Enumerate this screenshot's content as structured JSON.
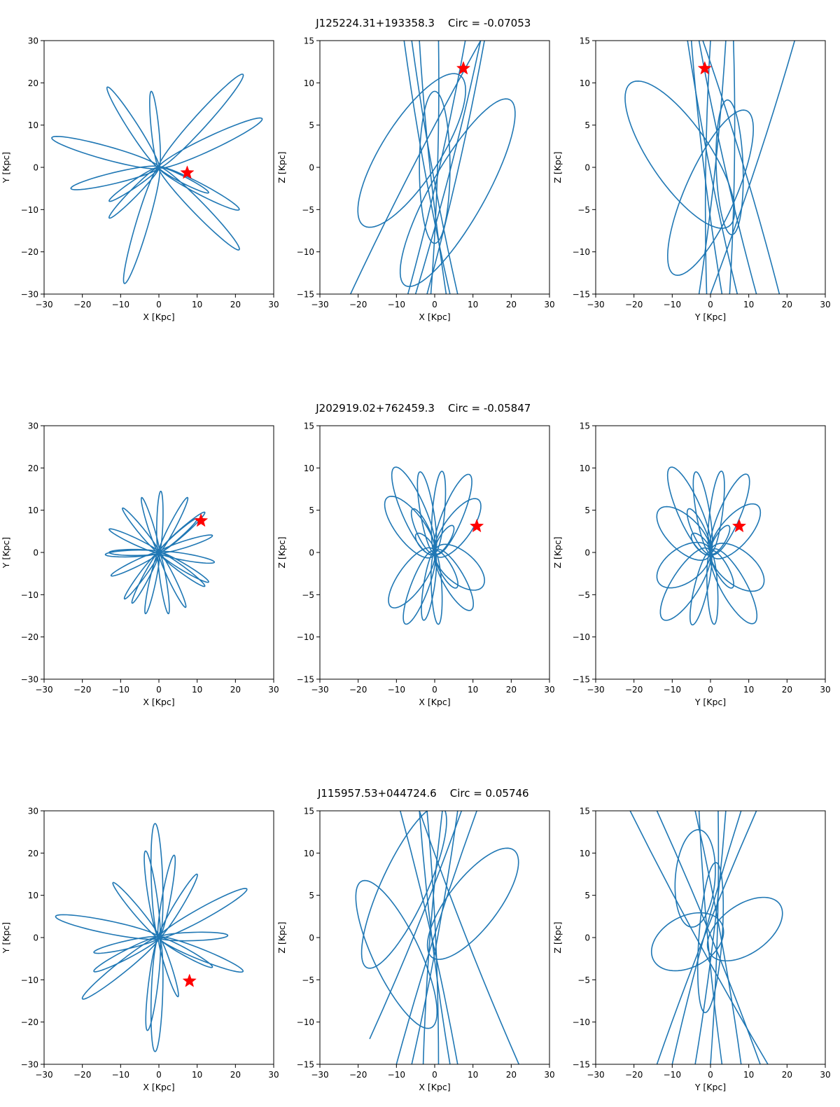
{
  "figure": {
    "rows": [
      {
        "star_id": "J125224.31+193358.3",
        "circ": "Circ = -0.07053"
      },
      {
        "star_id": "J202919.02+762459.3",
        "circ": "Circ = -0.05847"
      },
      {
        "star_id": "J115957.53+044724.6",
        "circ": "Circ = 0.05746"
      }
    ]
  },
  "colors": {
    "orbit": "#1f77b4",
    "star_marker": "#ff0000",
    "axes": "#000000"
  },
  "chart_data": [
    {
      "row": 0,
      "panel": "XY",
      "type": "line",
      "title": "J125224.31+193358.3    Circ = -0.07053",
      "xlabel": "X [Kpc]",
      "ylabel": "Y [Kpc]",
      "xlim": [
        -30,
        30
      ],
      "ylim": [
        -30,
        30
      ],
      "xticks": [
        -30,
        -20,
        -10,
        0,
        10,
        20,
        30
      ],
      "yticks": [
        -30,
        -20,
        -10,
        0,
        10,
        20,
        30
      ],
      "orbit": {
        "type": "rosette",
        "petals": [
          [
            22,
            22
          ],
          [
            27,
            11.5
          ],
          [
            21,
            -10
          ],
          [
            21,
            -19.5
          ],
          [
            -9,
            -27.5
          ],
          [
            -13,
            -8
          ],
          [
            -23,
            -5
          ],
          [
            -28,
            7
          ],
          [
            -13.5,
            19
          ],
          [
            -2,
            18
          ],
          [
            -13,
            -12
          ],
          [
            13,
            -6
          ]
        ]
      },
      "star": [
        7.4,
        -1.3
      ]
    },
    {
      "row": 0,
      "panel": "XZ",
      "type": "line",
      "xlabel": "X [Kpc]",
      "ylabel": "Z [Kpc]",
      "xlim": [
        -30,
        30
      ],
      "ylim": [
        -15,
        15
      ],
      "xticks": [
        -30,
        -20,
        -10,
        0,
        10,
        20,
        30
      ],
      "yticks": [
        -15,
        -10,
        -5,
        0,
        5,
        10,
        15
      ],
      "orbit": {
        "type": "edge",
        "strands": [
          [
            -8,
            15,
            4,
            -15
          ],
          [
            12,
            15,
            -5,
            -15
          ],
          [
            -6,
            15,
            6,
            -15
          ],
          [
            1,
            15,
            -1,
            -15
          ],
          [
            -22,
            -15,
            12,
            15
          ],
          [
            13,
            15,
            -2,
            -15
          ],
          [
            -4,
            15,
            3,
            -15
          ],
          [
            8,
            15,
            -7,
            -15
          ]
        ],
        "loops": [
          [
            -6,
            2,
            16,
            5,
            30
          ],
          [
            6,
            -3,
            18,
            5,
            35
          ],
          [
            0,
            0,
            4,
            9,
            0
          ]
        ]
      },
      "star": [
        7.5,
        11.7
      ]
    },
    {
      "row": 0,
      "panel": "YZ",
      "type": "line",
      "xlabel": "Y [Kpc]",
      "ylabel": "Z [Kpc]",
      "xlim": [
        -30,
        30
      ],
      "ylim": [
        -15,
        15
      ],
      "xticks": [
        -30,
        -20,
        -10,
        0,
        10,
        20,
        30
      ],
      "yticks": [
        -15,
        -10,
        -5,
        0,
        5,
        10,
        15
      ],
      "orbit": {
        "type": "edge",
        "strands": [
          [
            -5,
            15,
            3,
            -15
          ],
          [
            4,
            15,
            -3,
            -15
          ],
          [
            -3,
            15,
            12,
            -15
          ],
          [
            22,
            15,
            0,
            -15
          ],
          [
            -6,
            15,
            7,
            -15
          ],
          [
            -2,
            15,
            18,
            -15
          ],
          [
            0,
            15,
            -1,
            -15
          ],
          [
            6,
            15,
            5,
            -15
          ]
        ],
        "loops": [
          [
            -8,
            1.5,
            16,
            5,
            -28
          ],
          [
            0,
            -3,
            14,
            5,
            40
          ],
          [
            5,
            0,
            3.5,
            8,
            5
          ]
        ]
      },
      "star": [
        -1.5,
        11.7
      ]
    },
    {
      "row": 1,
      "panel": "XY",
      "type": "line",
      "title": "J202919.02+762459.3    Circ = -0.05847",
      "xlabel": "X [Kpc]",
      "ylabel": "Y [Kpc]",
      "xlim": [
        -30,
        30
      ],
      "ylim": [
        -30,
        30
      ],
      "xticks": [
        -30,
        -20,
        -10,
        0,
        10,
        20,
        30
      ],
      "yticks": [
        -30,
        -20,
        -10,
        0,
        10,
        20,
        30
      ],
      "orbit": {
        "type": "rosette",
        "petals": [
          [
            0.5,
            14.5
          ],
          [
            7.5,
            13
          ],
          [
            12,
            9.5
          ],
          [
            14,
            4
          ],
          [
            14.5,
            -2.3
          ],
          [
            12,
            -8
          ],
          [
            7,
            -13
          ],
          [
            2.5,
            -14.5
          ],
          [
            -3.5,
            -14.5
          ],
          [
            -9,
            -11
          ],
          [
            -12.5,
            -5.5
          ],
          [
            -14,
            -0.5
          ],
          [
            -13,
            5.5
          ],
          [
            -9.5,
            10.5
          ],
          [
            -4.5,
            13
          ],
          [
            10,
            8
          ],
          [
            13,
            -7
          ],
          [
            -7,
            -12
          ],
          [
            -13,
            0
          ]
        ]
      },
      "star": [
        11,
        7.5
      ]
    },
    {
      "row": 1,
      "panel": "XZ",
      "type": "line",
      "xlabel": "X [Kpc]",
      "ylabel": "Z [Kpc]",
      "xlim": [
        -30,
        30
      ],
      "ylim": [
        -15,
        15
      ],
      "xticks": [
        -30,
        -20,
        -10,
        0,
        10,
        20,
        30
      ],
      "yticks": [
        -15,
        -10,
        -5,
        0,
        5,
        10,
        15
      ],
      "orbit": {
        "type": "butterfly",
        "petals": [
          [
            -11,
            9.8
          ],
          [
            -4,
            9.5
          ],
          [
            2,
            9.6
          ],
          [
            9.5,
            9
          ],
          [
            -13,
            6
          ],
          [
            12,
            5.8
          ],
          [
            -12,
            -6
          ],
          [
            13,
            -3.5
          ],
          [
            -8,
            -8.3
          ],
          [
            -3,
            -8
          ],
          [
            1,
            -8.5
          ],
          [
            10,
            -6.5
          ],
          [
            -6,
            5
          ],
          [
            6,
            -4
          ],
          [
            -5,
            2
          ],
          [
            5,
            3
          ]
        ]
      },
      "star": [
        11,
        3.1
      ]
    },
    {
      "row": 1,
      "panel": "YZ",
      "type": "line",
      "xlabel": "Y [Kpc]",
      "ylabel": "Z [Kpc]",
      "xlim": [
        -30,
        30
      ],
      "ylim": [
        -15,
        15
      ],
      "xticks": [
        -30,
        -20,
        -10,
        0,
        10,
        20,
        30
      ],
      "yticks": [
        -15,
        -10,
        -5,
        0,
        5,
        10,
        15
      ],
      "orbit": {
        "type": "butterfly",
        "petals": [
          [
            -11,
            9.8
          ],
          [
            -4,
            9.5
          ],
          [
            3,
            9.6
          ],
          [
            10,
            9
          ],
          [
            -14,
            4.5
          ],
          [
            13,
            5
          ],
          [
            -14,
            -3
          ],
          [
            14,
            -3.5
          ],
          [
            -13,
            -7.5
          ],
          [
            -5,
            -8.5
          ],
          [
            1,
            -8.5
          ],
          [
            12,
            -8
          ],
          [
            -6,
            5
          ],
          [
            6,
            -4
          ],
          [
            -5,
            2
          ],
          [
            5,
            3
          ]
        ]
      },
      "star": [
        7.5,
        3.1
      ]
    },
    {
      "row": 2,
      "panel": "XY",
      "type": "line",
      "title": "J115957.53+044724.6    Circ = 0.05746",
      "xlabel": "X [Kpc]",
      "ylabel": "Y [Kpc]",
      "xlim": [
        -30,
        30
      ],
      "ylim": [
        -30,
        30
      ],
      "xticks": [
        -30,
        -20,
        -10,
        0,
        10,
        20,
        30
      ],
      "yticks": [
        -30,
        -20,
        -10,
        0,
        10,
        20,
        30
      ],
      "orbit": {
        "type": "rosette",
        "petals": [
          [
            -1,
            27
          ],
          [
            4,
            19.5
          ],
          [
            10,
            15
          ],
          [
            23,
            11.5
          ],
          [
            18,
            0.5
          ],
          [
            22,
            -8
          ],
          [
            14,
            -7
          ],
          [
            -1,
            -27
          ],
          [
            -3,
            -22
          ],
          [
            -20,
            -14.5
          ],
          [
            -17,
            -3.5
          ],
          [
            -27,
            5
          ],
          [
            -12,
            13
          ],
          [
            -3.5,
            20.5
          ],
          [
            -17,
            -8
          ],
          [
            5,
            -14
          ]
        ]
      },
      "star": [
        8,
        -10.3
      ]
    },
    {
      "row": 2,
      "panel": "XZ",
      "type": "line",
      "xlabel": "X [Kpc]",
      "ylabel": "Z [Kpc]",
      "xlim": [
        -30,
        30
      ],
      "ylim": [
        -15,
        15
      ],
      "xticks": [
        -30,
        -20,
        -10,
        0,
        10,
        20,
        30
      ],
      "yticks": [
        -15,
        -10,
        -5,
        0,
        5,
        10,
        15
      ],
      "orbit": {
        "type": "edge",
        "strands": [
          [
            -4,
            15,
            4,
            -15
          ],
          [
            -9,
            15,
            6,
            -15
          ],
          [
            2,
            15,
            -3,
            -15
          ],
          [
            6,
            15,
            -6,
            -15
          ],
          [
            11,
            15,
            -10,
            -15
          ],
          [
            -2,
            15,
            1,
            -15
          ],
          [
            22,
            -15,
            -4,
            15
          ],
          [
            -17,
            -12,
            7,
            15
          ]
        ],
        "loops": [
          [
            -10,
            -2,
            13,
            4.5,
            -38
          ],
          [
            10,
            4,
            13,
            4,
            25
          ],
          [
            -8,
            6,
            14,
            4.5,
            40
          ]
        ]
      },
      "star": null
    },
    {
      "row": 2,
      "panel": "YZ",
      "type": "line",
      "xlabel": "Y [Kpc]",
      "ylabel": "Z [Kpc]",
      "xlim": [
        -30,
        30
      ],
      "ylim": [
        -15,
        15
      ],
      "xticks": [
        -30,
        -20,
        -10,
        0,
        10,
        20,
        30
      ],
      "yticks": [
        -15,
        -10,
        -5,
        0,
        5,
        10,
        15
      ],
      "orbit": {
        "type": "edge",
        "strands": [
          [
            -21,
            15,
            15,
            -15
          ],
          [
            -4,
            15,
            8,
            -15
          ],
          [
            -3,
            15,
            3,
            -15
          ],
          [
            4,
            15,
            -4,
            -15
          ],
          [
            8,
            15,
            -10,
            -15
          ],
          [
            -14,
            15,
            13,
            -15
          ],
          [
            12,
            15,
            -14,
            -15
          ],
          [
            2,
            15,
            0,
            -15
          ]
        ],
        "loops": [
          [
            -6,
            -0.5,
            9.5,
            3.2,
            8
          ],
          [
            9,
            1,
            10,
            3.2,
            12
          ],
          [
            0,
            0,
            3,
            9,
            -10
          ],
          [
            -4,
            7,
            5,
            6,
            -30
          ]
        ]
      },
      "star": null
    }
  ]
}
